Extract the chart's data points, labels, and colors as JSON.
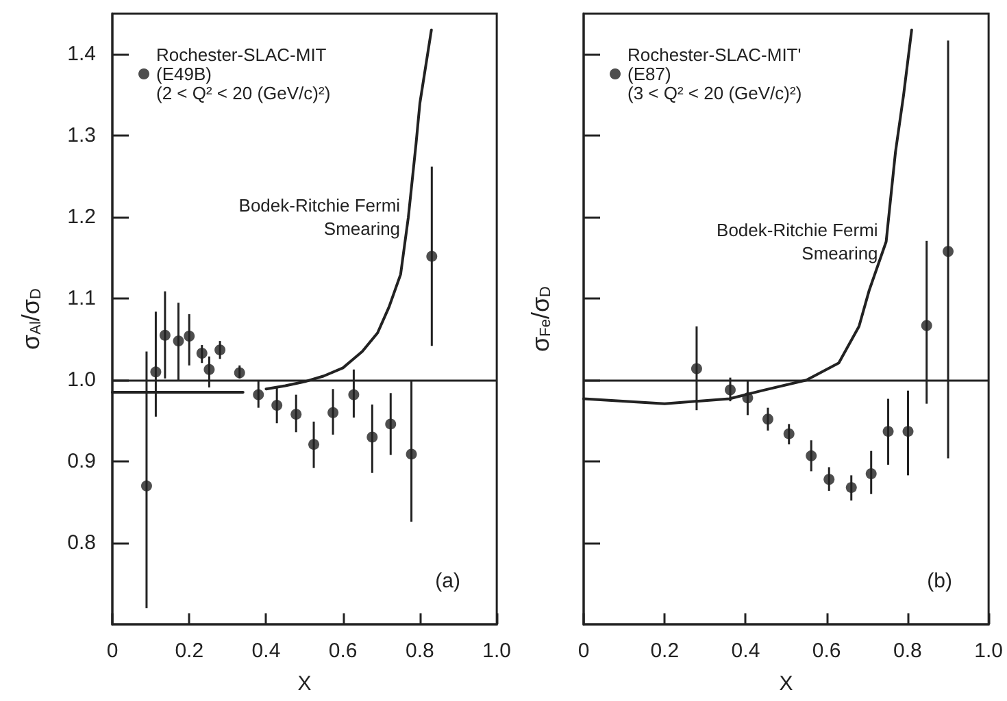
{
  "chart_data": [
    {
      "type": "scatter",
      "xlabel": "X",
      "ylabel": "σ$_{Al}$/σ$_{D}$",
      "xlim": [
        0,
        1
      ],
      "ylim": [
        0.7,
        1.45
      ],
      "xticks": [
        0,
        0.2,
        0.4,
        0.6,
        0.8,
        {
          "value": 1,
          "label": "1.0"
        }
      ],
      "yticks": [
        0.8,
        0.9,
        {
          "value": 1,
          "label": "1.0"
        },
        1.1,
        1.2,
        1.3,
        1.4
      ],
      "marker": "circle",
      "legend": "top left",
      "annotations": [
        "(a)"
      ],
      "ref_lines": [
        {
          "axis": "y",
          "value": 1
        }
      ],
      "series": [
        {
          "name": "Rochester-SLAC-MIT\n(E49B)\n(2 < Q² < 20 (GeV/c)²)",
          "color": "#222222",
          "x": [
            0.089,
            0.113,
            0.137,
            0.172,
            0.2,
            0.233,
            0.252,
            0.28,
            0.331,
            0.38,
            0.428,
            0.478,
            0.524,
            0.574,
            0.628,
            0.676,
            0.724,
            0.778,
            0.831
          ],
          "values": [
            0.87,
            1.01,
            1.055,
            1.048,
            1.054,
            1.033,
            1.013,
            1.037,
            1.009,
            0.982,
            0.969,
            0.958,
            0.921,
            0.96,
            0.982,
            0.93,
            0.946,
            0.909,
            1.152
          ],
          "errors": [
            [
              0.72,
              1.035
            ],
            [
              0.955,
              1.084
            ],
            [
              1.002,
              1.109
            ],
            [
              1.0,
              1.095
            ],
            [
              1.018,
              1.081
            ],
            [
              1.021,
              1.043
            ],
            [
              0.991,
              1.029
            ],
            [
              1.026,
              1.048
            ],
            [
              1.002,
              1.018
            ],
            [
              0.966,
              0.999
            ],
            [
              0.947,
              0.991
            ],
            [
              0.936,
              0.982
            ],
            [
              0.892,
              0.949
            ],
            [
              0.933,
              0.989
            ],
            [
              0.954,
              1.013
            ],
            [
              0.886,
              0.97
            ],
            [
              0.908,
              0.984
            ],
            [
              0.826,
              0.999
            ],
            [
              1.042,
              1.262
            ]
          ]
        },
        {
          "name": "Bodek-Ritchie Fermi\nSmearing",
          "type": "line",
          "color": "#222222",
          "marker": "none",
          "line_style": "solid",
          "x": [
            0,
            0.1,
            0.2,
            0.34,
            0.37,
            0.4,
            0.45,
            0.5,
            0.55,
            0.6,
            0.65,
            0.69,
            0.72,
            0.75,
            0.77,
            0.79,
            0.8,
            0.83
          ],
          "values": [
            0.985,
            0.985,
            0.985,
            0.985,
            null,
            0.989,
            0.993,
            0.998,
            1.005,
            1.015,
            1.035,
            1.058,
            1.09,
            1.13,
            1.2,
            1.29,
            1.34,
            1.43
          ]
        }
      ]
    },
    {
      "type": "scatter",
      "xlabel": "X",
      "ylabel": "σ$_{Fe}$/σ$_{D}$",
      "xlim": [
        0,
        1
      ],
      "ylim": [
        0.7,
        1.45
      ],
      "xticks": [
        0,
        0.2,
        0.4,
        0.6,
        0.8,
        {
          "value": 1,
          "label": "1.0"
        }
      ],
      "yticks": [
        0.8,
        0.9,
        1,
        1.1,
        1.2,
        1.3,
        1.4
      ],
      "tick_labels": "x",
      "marker": "circle",
      "legend": "top left",
      "annotations": [
        "(b)"
      ],
      "ref_lines": [
        {
          "axis": "y",
          "value": 1
        }
      ],
      "series": [
        {
          "name": "Rochester-SLAC-MIT'\n(E87)\n(3 < Q² < 20 (GeV/c)²)",
          "color": "#222222",
          "x": [
            0.279,
            0.362,
            0.405,
            0.455,
            0.507,
            0.562,
            0.606,
            0.661,
            0.71,
            0.752,
            0.801,
            0.847,
            0.9
          ],
          "values": [
            1.014,
            0.988,
            0.978,
            0.952,
            0.934,
            0.907,
            0.878,
            0.868,
            0.885,
            0.937,
            0.937,
            1.067,
            1.158
          ],
          "errors": [
            [
              0.963,
              1.066
            ],
            [
              0.974,
              1.003
            ],
            [
              0.957,
              0.999
            ],
            [
              0.938,
              0.966
            ],
            [
              0.921,
              0.946
            ],
            [
              0.888,
              0.926
            ],
            [
              0.864,
              0.893
            ],
            [
              0.852,
              0.883
            ],
            [
              0.86,
              0.913
            ],
            [
              0.896,
              0.977
            ],
            [
              0.883,
              0.987
            ],
            [
              0.971,
              1.171
            ],
            [
              0.904,
              1.417
            ]
          ]
        },
        {
          "name": "Bodek-Ritchie Fermi\nSmearing",
          "type": "line",
          "color": "#222222",
          "marker": "none",
          "line_style": "solid",
          "x": [
            0,
            0.2,
            0.36,
            0.44,
            0.55,
            0.63,
            0.68,
            0.705,
            0.747,
            0.77,
            0.79,
            0.81
          ],
          "values": [
            0.977,
            0.971,
            0.977,
            0.987,
            1.0,
            1.021,
            1.066,
            1.11,
            1.17,
            1.28,
            1.35,
            1.43
          ]
        }
      ]
    }
  ]
}
